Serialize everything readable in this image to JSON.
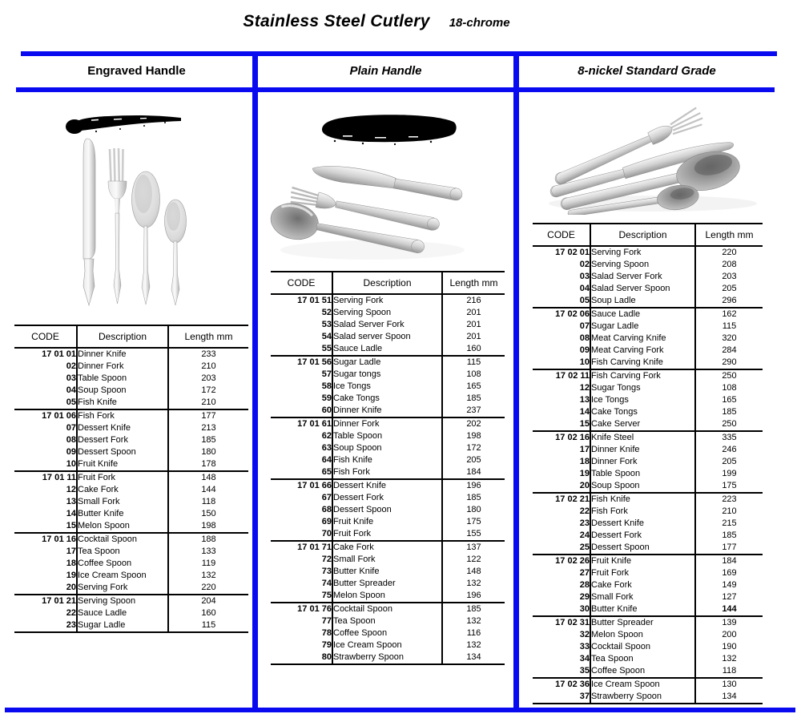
{
  "title": "Stainless Steel Cutlery",
  "subtitle": "18-chrome",
  "accent_color": "#0a0af0",
  "columns": [
    {
      "header": "Engraved Handle",
      "image_name": "engraved-handle-cutlery-photo",
      "sample_image_name": "engraved-handle-stroke-sample",
      "table": {
        "headers": [
          "CODE",
          "Description",
          "Length mm"
        ],
        "groups": [
          [
            [
              "17 01 01",
              "Dinner Knife",
              "233"
            ],
            [
              "02",
              "Dinner Fork",
              "210"
            ],
            [
              "03",
              "Table Spoon",
              "203"
            ],
            [
              "04",
              "Soup Spoon",
              "172"
            ],
            [
              "05",
              "Fish Knife",
              "210"
            ]
          ],
          [
            [
              "17 01 06",
              "Fish Fork",
              "177"
            ],
            [
              "07",
              "Dessert Knife",
              "213"
            ],
            [
              "08",
              "Dessert Fork",
              "185"
            ],
            [
              "09",
              "Dessert Spoon",
              "180"
            ],
            [
              "10",
              "Fruit Knife",
              "178"
            ]
          ],
          [
            [
              "17 01 11",
              "Fruit Fork",
              "148"
            ],
            [
              "12",
              "Cake Fork",
              "144"
            ],
            [
              "13",
              "Small Fork",
              "118"
            ],
            [
              "14",
              "Butter Knife",
              "150"
            ],
            [
              "15",
              "Melon Spoon",
              "198"
            ]
          ],
          [
            [
              "17 01 16",
              "Cocktail Spoon",
              "188"
            ],
            [
              "17",
              "Tea Spoon",
              "133"
            ],
            [
              "18",
              "Coffee Spoon",
              "119"
            ],
            [
              "19",
              "Ice Cream Spoon",
              "132"
            ],
            [
              "20",
              "Serving Fork",
              "220"
            ]
          ],
          [
            [
              "17 01 21",
              "Serving Spoon",
              "204"
            ],
            [
              "22",
              "Sauce Ladle",
              "160"
            ],
            [
              "23",
              "Sugar Ladle",
              "115"
            ]
          ]
        ]
      }
    },
    {
      "header": "Plain Handle",
      "image_name": "plain-handle-cutlery-photo",
      "sample_image_name": "plain-handle-silhouette-sample",
      "table": {
        "headers": [
          "CODE",
          "Description",
          "Length mm"
        ],
        "groups": [
          [
            [
              "17 01 51",
              "Serving Fork",
              "216"
            ],
            [
              "52",
              "Serving Spoon",
              "201"
            ],
            [
              "53",
              "Salad Server Fork",
              "201"
            ],
            [
              "54",
              "Salad server Spoon",
              "201"
            ],
            [
              "55",
              "Sauce Ladle",
              "160"
            ]
          ],
          [
            [
              "17 01 56",
              "Sugar Ladle",
              "115"
            ],
            [
              "57",
              "Sugar tongs",
              "108"
            ],
            [
              "58",
              "Ice Tongs",
              "165"
            ],
            [
              "59",
              "Cake Tongs",
              "185"
            ],
            [
              "60",
              "Dinner Knife",
              "237"
            ]
          ],
          [
            [
              "17 01 61",
              "Dinner Fork",
              "202"
            ],
            [
              "62",
              "Table Spoon",
              "198"
            ],
            [
              "63",
              "Soup Spoon",
              "172"
            ],
            [
              "64",
              "Fish Knife",
              "205"
            ],
            [
              "65",
              "Fish Fork",
              "184"
            ]
          ],
          [
            [
              "17 01 66",
              "Dessert Knife",
              "196"
            ],
            [
              "67",
              "Dessert Fork",
              "185"
            ],
            [
              "68",
              "Dessert Spoon",
              "180"
            ],
            [
              "69",
              "Fruit Knife",
              "175"
            ],
            [
              "70",
              "Fruit Fork",
              "155"
            ]
          ],
          [
            [
              "17 01 71",
              "Cake Fork",
              "137"
            ],
            [
              "72",
              "Small Fork",
              "122"
            ],
            [
              "73",
              "Butter Knife",
              "148"
            ],
            [
              "74",
              "Butter Spreader",
              "132"
            ],
            [
              "75",
              "Melon Spoon",
              "196"
            ]
          ],
          [
            [
              "17 01 76",
              "Cocktail Spoon",
              "185"
            ],
            [
              "77",
              "Tea Spoon",
              "132"
            ],
            [
              "78",
              "Coffee Spoon",
              "116"
            ],
            [
              "79",
              "Ice Cream Spoon",
              "132"
            ],
            [
              "80",
              "Strawberry Spoon",
              "134"
            ]
          ]
        ]
      }
    },
    {
      "header": "8-nickel Standard Grade",
      "image_name": "standard-grade-cutlery-photo",
      "table": {
        "headers": [
          "CODE",
          "Description",
          "Length mm"
        ],
        "groups": [
          [
            [
              "17 02 01",
              "Serving Fork",
              "220"
            ],
            [
              "02",
              "Serving Spoon",
              "208"
            ],
            [
              "03",
              "Salad Server Fork",
              "203"
            ],
            [
              "04",
              "Salad Server Spoon",
              "205"
            ],
            [
              "05",
              "Soup Ladle",
              "296"
            ]
          ],
          [
            [
              "17 02 06",
              "Sauce Ladle",
              "162"
            ],
            [
              "07",
              "Sugar Ladle",
              "115"
            ],
            [
              "08",
              "Meat Carving Knife",
              "320"
            ],
            [
              "09",
              "Meat Carving Fork",
              "284"
            ],
            [
              "10",
              "Fish Carving Knife",
              "290"
            ]
          ],
          [
            [
              "17 02 11",
              "Fish Carving Fork",
              "250"
            ],
            [
              "12",
              "Sugar Tongs",
              "108"
            ],
            [
              "13",
              "Ice Tongs",
              "165"
            ],
            [
              "14",
              "Cake Tongs",
              "185"
            ],
            [
              "15",
              "Cake Server",
              "250"
            ]
          ],
          [
            [
              "17 02 16",
              "Knife Steel",
              "335"
            ],
            [
              "17",
              "Dinner Knife",
              "246"
            ],
            [
              "18",
              "Dinner Fork",
              "205"
            ],
            [
              "19",
              "Table Spoon",
              "199"
            ],
            [
              "20",
              "Soup Spoon",
              "175"
            ]
          ],
          [
            [
              "17 02 21",
              "Fish Knife",
              "223"
            ],
            [
              "22",
              "Fish Fork",
              "210"
            ],
            [
              "23",
              "Dessert Knife",
              "215"
            ],
            [
              "24",
              "Dessert Fork",
              "185"
            ],
            [
              "25",
              "Dessert Spoon",
              "177"
            ]
          ],
          [
            [
              "17 02 26",
              "Fruit Knife",
              "184"
            ],
            [
              "27",
              "Fruit Fork",
              "169"
            ],
            [
              "28",
              "Cake Fork",
              "149"
            ],
            [
              "29",
              "Small Fork",
              "127"
            ],
            [
              "30",
              "Butter Knife",
              "144",
              "bold"
            ]
          ],
          [
            [
              "17 02 31",
              "Butter Spreader",
              "139"
            ],
            [
              "32",
              "Melon Spoon",
              "200"
            ],
            [
              "33",
              "Cocktail Spoon",
              "190"
            ],
            [
              "34",
              "Tea Spoon",
              "132"
            ],
            [
              "35",
              "Coffee Spoon",
              "118"
            ]
          ],
          [
            [
              "17 02 36",
              "Ice Cream Spoon",
              "130"
            ],
            [
              "37",
              "Strawberry Spoon",
              "134"
            ]
          ]
        ]
      }
    }
  ]
}
